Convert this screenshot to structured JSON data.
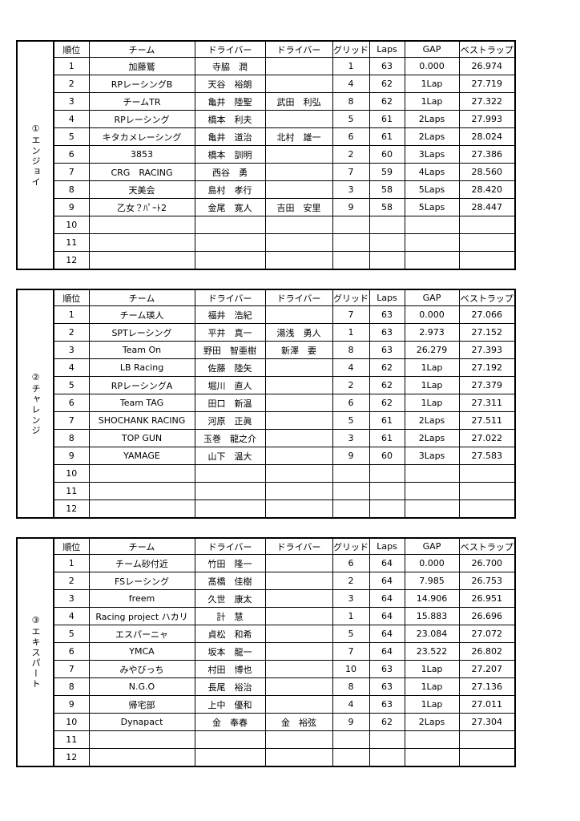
{
  "sections": [
    {
      "label": "①エンジョイ",
      "headers": [
        "順位",
        "チーム",
        "ドライバー",
        "ドライバー",
        "グリッド",
        "Laps",
        "GAP",
        "ベストラップ"
      ],
      "rows": [
        [
          "1",
          "加藤鷲",
          "寺脇　潤",
          null,
          "1",
          "63",
          "0.000",
          "26.974"
        ],
        [
          "2",
          "RPレーシングB",
          "天谷　裕朗",
          null,
          "4",
          "62",
          "1Lap",
          "27.719"
        ],
        [
          "3",
          "チームTR",
          "亀井　陸聖",
          "武田　利弘",
          "8",
          "62",
          "1Lap",
          "27.322"
        ],
        [
          "4",
          "RPレーシング",
          "橋本　利夫",
          null,
          "5",
          "61",
          "2Laps",
          "27.993"
        ],
        [
          "5",
          "キタカメレーシング",
          "亀井　道治",
          "北村　雄一",
          "6",
          "61",
          "2Laps",
          "28.024"
        ],
        [
          "6",
          "3853",
          "橋本　訓明",
          null,
          "2",
          "60",
          "3Laps",
          "27.386"
        ],
        [
          "7",
          "CRG　RACING",
          "西谷　勇",
          null,
          "7",
          "59",
          "4Laps",
          "28.560"
        ],
        [
          "8",
          "天美会",
          "島村　孝行",
          null,
          "3",
          "58",
          "5Laps",
          "28.420"
        ],
        [
          "9",
          "乙女？ﾊﾟｰﾄ2",
          "金尾　寛人",
          "吉田　安里",
          "9",
          "58",
          "5Laps",
          "28.447"
        ],
        [
          "10"
        ],
        [
          "11"
        ],
        [
          "12"
        ]
      ]
    },
    {
      "label": "②チャレンジ",
      "headers": [
        "順位",
        "チーム",
        "ドライバー",
        "ドライバー",
        "グリッド",
        "Laps",
        "GAP",
        "ベストラップ"
      ],
      "rows": [
        [
          "1",
          "チーム瑛人",
          "福井　浩紀",
          null,
          "7",
          "63",
          "0.000",
          "27.066"
        ],
        [
          "2",
          "SPTレーシング",
          "平井　真一",
          "湯浅　勇人",
          "1",
          "63",
          "2.973",
          "27.152"
        ],
        [
          "3",
          "Team On",
          "野田　智亜樹",
          "新澤　要",
          "8",
          "63",
          "26.279",
          "27.393"
        ],
        [
          "4",
          "LB Racing",
          "佐藤　陸矢",
          null,
          "4",
          "62",
          "1Lap",
          "27.192"
        ],
        [
          "5",
          "RPレーシングA",
          "堀川　直人",
          null,
          "2",
          "62",
          "1Lap",
          "27.379"
        ],
        [
          "6",
          "Team TAG",
          "田口　新温",
          null,
          "6",
          "62",
          "1Lap",
          "27.311"
        ],
        [
          "7",
          "SHOCHANK RACING",
          "河原　正眞",
          null,
          "5",
          "61",
          "2Laps",
          "27.511"
        ],
        [
          "8",
          "TOP GUN",
          "玉巻　龍之介",
          null,
          "3",
          "61",
          "2Laps",
          "27.022"
        ],
        [
          "9",
          "YAMAGE",
          "山下　温大",
          null,
          "9",
          "60",
          "3Laps",
          "27.583"
        ],
        [
          "10"
        ],
        [
          "11"
        ],
        [
          "12"
        ]
      ]
    },
    {
      "label": "③エキスパート",
      "headers": [
        "順位",
        "チーム",
        "ドライバー",
        "ドライバー",
        "グリッド",
        "Laps",
        "GAP",
        "ベストラップ"
      ],
      "rows": [
        [
          "1",
          "チーム砂付近",
          "竹田　隆一",
          null,
          "6",
          "64",
          "0.000",
          "26.700"
        ],
        [
          "2",
          "FSレーシング",
          "髙橋　佳樹",
          null,
          "2",
          "64",
          "7.985",
          "26.753"
        ],
        [
          "3",
          "freem",
          "久世　康太",
          null,
          "3",
          "64",
          "14.906",
          "26.951"
        ],
        [
          "4",
          "Racing project ハカリ",
          "計　慧",
          null,
          "1",
          "64",
          "15.883",
          "26.696"
        ],
        [
          "5",
          "エスパーニャ",
          "貞松　和希",
          null,
          "5",
          "64",
          "23.084",
          "27.072"
        ],
        [
          "6",
          "YMCA",
          "坂本　龍一",
          null,
          "7",
          "64",
          "23.522",
          "26.802"
        ],
        [
          "7",
          "みやびっち",
          "村田　博也",
          null,
          "10",
          "63",
          "1Lap",
          "27.207"
        ],
        [
          "8",
          "N.G.O",
          "長尾　裕治",
          null,
          "8",
          "63",
          "1Lap",
          "27.136"
        ],
        [
          "9",
          "帰宅部",
          "上中　優和",
          null,
          "4",
          "63",
          "1Lap",
          "27.011"
        ],
        [
          "10",
          "Dynapact",
          "金　奉春",
          "金　裕弦",
          "9",
          "62",
          "2Laps",
          "27.304"
        ],
        [
          "11"
        ],
        [
          "12"
        ]
      ]
    }
  ]
}
